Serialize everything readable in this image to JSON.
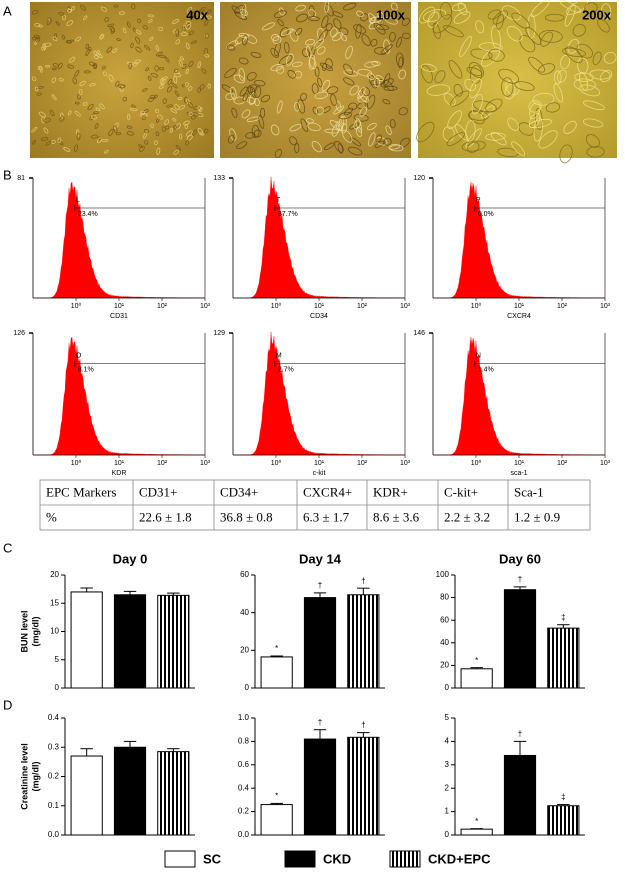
{
  "panel_labels": [
    "A",
    "B",
    "C",
    "D"
  ],
  "micrographs": [
    "40x",
    "100x",
    "200x"
  ],
  "table": {
    "header": [
      "EPC Markers",
      "CD31+",
      "CD34+",
      "CXCR4+",
      "KDR+",
      "C-kit+",
      "Sca-1"
    ],
    "rows": [
      [
        "%",
        "22.6 ± 1.8",
        "36.8 ± 0.8",
        "6.3 ± 1.7",
        "8.6 ± 3.6",
        "2.2 ± 3.2",
        "1.2 ± 0.9"
      ]
    ]
  },
  "legend": [
    {
      "name": "SC",
      "color": "#ffffff"
    },
    {
      "name": "CKD",
      "color": "#000000"
    },
    {
      "name": "CKD+EPC",
      "color": "#000000",
      "hatch": "vertical"
    }
  ],
  "chart_data": [
    {
      "type": "flow",
      "xlabel": "CD31",
      "log_x": true,
      "xlim": [
        0.1,
        1000
      ],
      "xticks": [
        {
          "value": 1,
          "label": "10⁰"
        },
        {
          "value": 10,
          "label": "10¹"
        },
        {
          "value": 100,
          "label": "10²"
        },
        {
          "value": 1000,
          "label": "10³"
        }
      ],
      "ylim": [
        0,
        81
      ],
      "yticks": [
        81
      ],
      "gate": {
        "name": "L",
        "label": "23.4%"
      },
      "color": "#ff0000"
    },
    {
      "type": "flow",
      "xlabel": "CD34",
      "log_x": true,
      "xlim": [
        0.1,
        1000
      ],
      "xticks": [
        {
          "value": 1,
          "label": "10⁰"
        },
        {
          "value": 10,
          "label": "10¹"
        },
        {
          "value": 100,
          "label": "10²"
        },
        {
          "value": 1000,
          "label": "10³"
        }
      ],
      "ylim": [
        0,
        133
      ],
      "yticks": [
        133
      ],
      "gate": {
        "name": "T",
        "label": "37.7%"
      },
      "color": "#ff0000"
    },
    {
      "type": "flow",
      "xlabel": "CXCR4",
      "log_x": true,
      "xlim": [
        0.1,
        1000
      ],
      "xticks": [
        {
          "value": 1,
          "label": "10⁰"
        },
        {
          "value": 10,
          "label": "10¹"
        },
        {
          "value": 100,
          "label": "10²"
        },
        {
          "value": 1000,
          "label": "10³"
        }
      ],
      "ylim": [
        0,
        120
      ],
      "yticks": [
        120
      ],
      "gate": {
        "name": "P",
        "label": "6.0%"
      },
      "color": "#ff0000"
    },
    {
      "type": "flow",
      "xlabel": "KDR",
      "log_x": true,
      "xlim": [
        0.1,
        1000
      ],
      "xticks": [
        {
          "value": 1,
          "label": "10⁰"
        },
        {
          "value": 10,
          "label": "10¹"
        },
        {
          "value": 100,
          "label": "10²"
        },
        {
          "value": 1000,
          "label": "10³"
        }
      ],
      "ylim": [
        0,
        126
      ],
      "yticks": [
        126
      ],
      "gate": {
        "name": "O",
        "label": "8.1%"
      },
      "color": "#ff0000"
    },
    {
      "type": "flow",
      "xlabel": "c-kit",
      "log_x": true,
      "xlim": [
        0.1,
        1000
      ],
      "xticks": [
        {
          "value": 1,
          "label": "10⁰"
        },
        {
          "value": 10,
          "label": "10¹"
        },
        {
          "value": 100,
          "label": "10²"
        },
        {
          "value": 1000,
          "label": "10³"
        }
      ],
      "ylim": [
        0,
        129
      ],
      "yticks": [
        129
      ],
      "gate": {
        "name": "M",
        "label": "2.7%"
      },
      "color": "#ff0000"
    },
    {
      "type": "flow",
      "xlabel": "sca-1",
      "log_x": true,
      "xlim": [
        0.1,
        1000
      ],
      "xticks": [
        {
          "value": 1,
          "label": "10⁰"
        },
        {
          "value": 10,
          "label": "10¹"
        },
        {
          "value": 100,
          "label": "10²"
        },
        {
          "value": 1000,
          "label": "10³"
        }
      ],
      "ylim": [
        0,
        146
      ],
      "yticks": [
        146
      ],
      "gate": {
        "name": "N",
        "label": "1.4%"
      },
      "color": "#ff0000"
    },
    {
      "type": "bar",
      "title": "Day 0",
      "ylabel": [
        "BUN level",
        "(mg/dl)"
      ],
      "values": [
        17,
        16.5,
        16.4
      ],
      "errors": [
        0.7,
        0.6,
        0.4
      ],
      "ylim": [
        0,
        20
      ],
      "yticks": [
        0,
        5,
        10,
        15,
        20
      ]
    },
    {
      "type": "bar",
      "title": "Day 14",
      "values": [
        16.5,
        48,
        49.5
      ],
      "errors": [
        0.5,
        2.5,
        3.5
      ],
      "annotations": [
        "*",
        "†",
        "†"
      ],
      "ylim": [
        0,
        60
      ],
      "yticks": [
        0,
        20,
        40,
        60
      ]
    },
    {
      "type": "bar",
      "title": "Day 60",
      "values": [
        17,
        87,
        53
      ],
      "errors": [
        1,
        2.5,
        3
      ],
      "annotations": [
        "*",
        "†",
        "‡"
      ],
      "ylim": [
        0,
        100
      ],
      "yticks": [
        0,
        20,
        40,
        60,
        80,
        100
      ]
    },
    {
      "type": "bar",
      "ylabel": [
        "Creatinine level",
        "(mg/dl)"
      ],
      "values": [
        0.27,
        0.3,
        0.285
      ],
      "errors": [
        0.025,
        0.02,
        0.01
      ],
      "ylim": [
        0,
        0.4
      ],
      "yticks": [
        {
          "value": 0,
          "label": "0.0"
        },
        0.1,
        0.2,
        0.3,
        0.4
      ]
    },
    {
      "type": "bar",
      "values": [
        0.26,
        0.82,
        0.835
      ],
      "errors": [
        0.01,
        0.08,
        0.04
      ],
      "annotations": [
        "*",
        "†",
        "†"
      ],
      "ylim": [
        0,
        1
      ],
      "yticks": [
        {
          "value": 0,
          "label": "0.0"
        },
        0.2,
        0.4,
        0.6,
        0.8,
        {
          "value": 1,
          "label": "1.0"
        }
      ]
    },
    {
      "type": "bar",
      "values": [
        0.25,
        3.4,
        1.25
      ],
      "errors": [
        0.02,
        0.6,
        0.05
      ],
      "annotations": [
        "*",
        "†",
        "‡"
      ],
      "ylim": [
        0,
        5
      ],
      "yticks": [
        0,
        1,
        2,
        3,
        4,
        5
      ]
    }
  ]
}
